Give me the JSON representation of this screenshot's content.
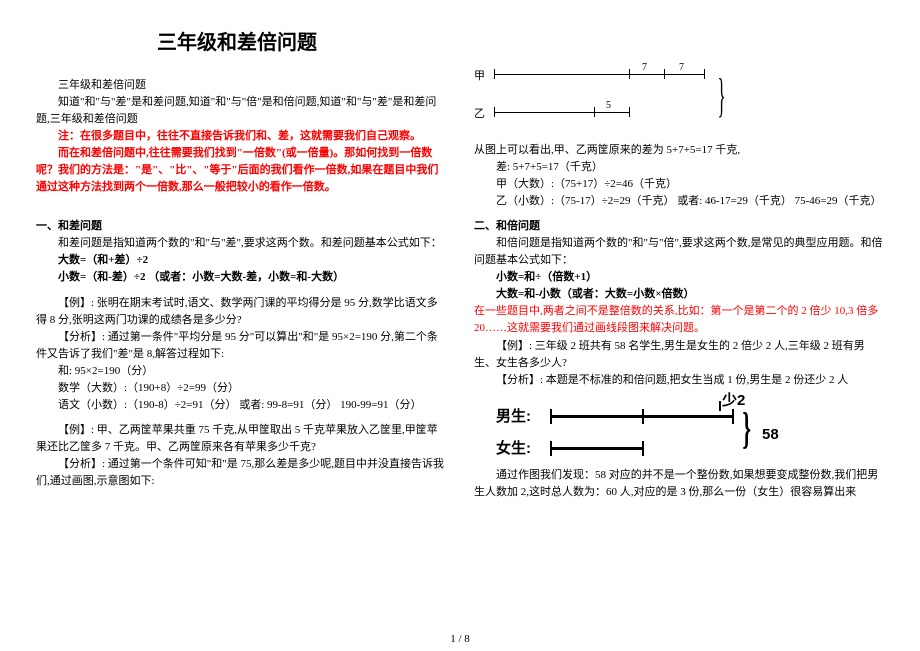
{
  "title": "三年级和差倍问题",
  "left": {
    "p1": "三年级和差倍问题",
    "p2": "知道\"和\"与\"差\"是和差问题,知道\"和\"与\"倍\"是和倍问题,知道\"和\"与\"差\"是和差问题,三年级和差倍问题",
    "note1": "注：在很多题目中，往往不直接告诉我们和、差，这就需要我们自己观察。",
    "note2": "而在和差倍问题中,往往需要我们找到\"一倍数\"(或一倍量)。那如何找到一倍数呢？我们的方法是：\"是\"、\"比\"、\"等于\"后面的我们看作一倍数,如果在题目中我们通过这种方法找到两个一倍数,那么一般把较小的看作一倍数。",
    "sec1": "一、和差问题",
    "sec1_p1": "和差问题是指知道两个数的\"和\"与\"差\",要求这两个数。和差问题基本公式如下：",
    "f1": "大数=（和+差）÷2",
    "f2": "小数=（和-差）÷2  （或者：小数=大数-差，小数=和-大数）",
    "ex1": "【例】: 张明在期末考试时,语文、数学两门课的平均得分是 95 分,数学比语文多得 8 分,张明这两门功课的成绩各是多少分?",
    "ex1a": "【分析】: 通过第一条件\"平均分是 95 分\"可以算出\"和\"是 95×2=190 分,第二个条件又告诉了我们\"差\"是 8,解答过程如下:",
    "ex1c1": "和: 95×2=190（分）",
    "ex1c2": "数学（大数）:（190+8）÷2=99（分）",
    "ex1c3": "语文（小数）:（190-8）÷2=91（分）   或者: 99-8=91（分）   190-99=91（分）",
    "ex2": "【例】: 甲、乙两筐苹果共重 75 千克,从甲筐取出 5 千克苹果放入乙筐里,甲筐苹果还比乙筐多 7 千克。甲、乙两筐原来各有苹果多少千克?",
    "ex2a": "【分析】: 通过第一个条件可知\"和\"是 75,那么差是多少呢,题目中并没直接告诉我们,通过画图,示意图如下:"
  },
  "right": {
    "d1_a": "甲",
    "d1_b": "乙",
    "d1_7a": "7",
    "d1_7b": "7",
    "d1_5": "5",
    "r1": "从图上可以看出,甲、乙两筐原来的差为 5+7+5=17 千克,",
    "r2": "差: 5+7+5=17（千克）",
    "r3": "甲（大数）:（75+17）÷2=46（千克）",
    "r4": "乙（小数）:（75-17）÷2=29（千克）   或者: 46-17=29（千克）  75-46=29（千克）",
    "sec2": "二、和倍问题",
    "sec2_p1": "和倍问题是指知道两个数的\"和\"与\"倍\",要求这两个数,是常见的典型应用题。和倍问题基本公式如下：",
    "f3": "小数=和÷（倍数+1）",
    "f4": "大数=和-小数（或者：大数=小数×倍数）",
    "note3": "在一些题目中,两者之间不是整倍数的关系,比如：第一个是第二个的 2 倍少 10,3 倍多 20……这就需要我们通过画线段图来解决问题。",
    "ex3": "【例】: 三年级 2 班共有 58 名学生,男生是女生的 2 倍少 2 人,三年级 2 班有男生、女生各多少人?",
    "ex3a": "【分析】: 本题是不标准的和倍问题,把女生当成 1 份,男生是 2 份还少 2 人",
    "d2_boy": "男生:",
    "d2_girl": "女生:",
    "d2_less": "少2",
    "d2_58": "58",
    "r5": "通过作图我们发现：58 对应的并不是一个整份数,如果想要变成整份数,我们把男生人数加 2,这时总人数为：60 人,对应的是 3 份,那么一份（女生）很容易算出来"
  },
  "pagenum": "1 / 8"
}
